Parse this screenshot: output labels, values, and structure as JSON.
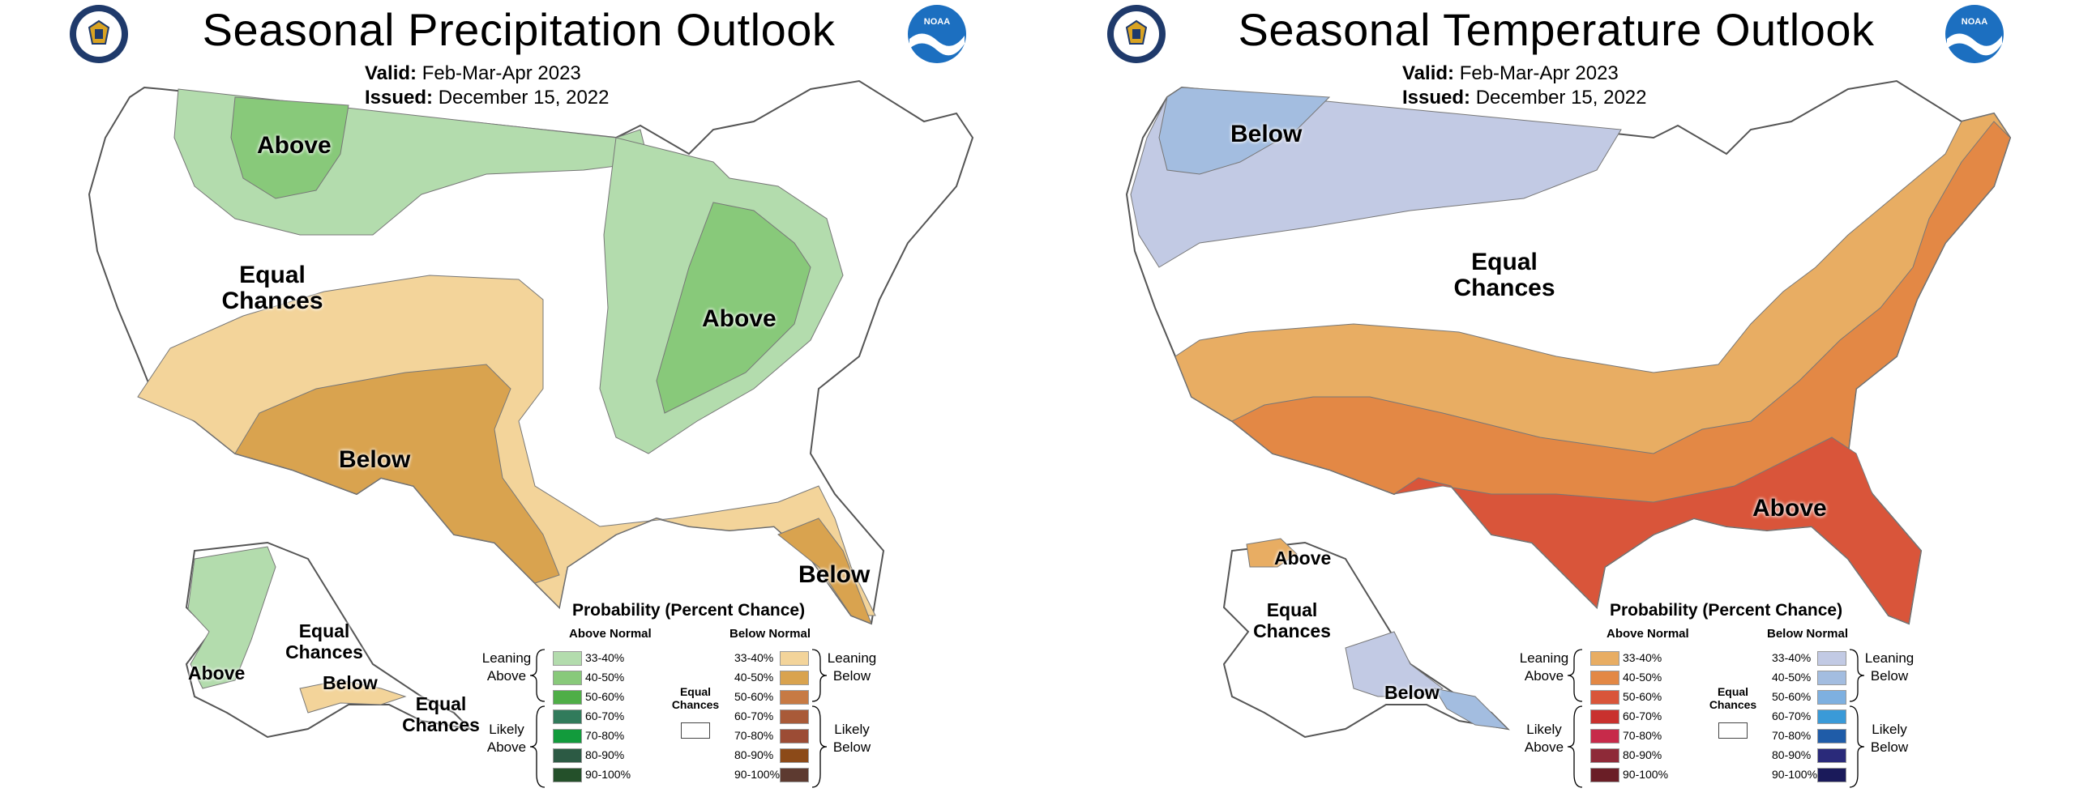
{
  "panels": [
    {
      "title": "Seasonal Precipitation Outlook",
      "valid_label": "Valid:",
      "valid_value": "Feb-Mar-Apr 2023",
      "issued_label": "Issued:",
      "issued_value": "December 15, 2022",
      "map_labels": {
        "above_north": "Above",
        "equal_west": "Equal Chances",
        "above_east": "Above",
        "below_sw": "Below",
        "below_fl": "Below",
        "ak_equal": "Equal Chances",
        "ak_above": "Above",
        "ak_below": "Below",
        "ak_equal2": "Equal Chances"
      },
      "legend": {
        "title": "Probability (Percent Chance)",
        "above_header": "Above Normal",
        "below_header": "Below Normal",
        "leaning_above": "Leaning Above",
        "likely_above": "Likely Above",
        "leaning_below": "Leaning Below",
        "likely_below": "Likely Below",
        "equal_chances": "Equal Chances",
        "percents": [
          "33-40%",
          "40-50%",
          "50-60%",
          "60-70%",
          "70-80%",
          "80-90%",
          "90-100%"
        ],
        "above_colors": [
          "#b3dcad",
          "#88c97a",
          "#4fae47",
          "#317b5b",
          "#129b3c",
          "#2c5a44",
          "#24502a"
        ],
        "below_colors": [
          "#f3d49a",
          "#d9a34f",
          "#c77a44",
          "#a95a38",
          "#9c4c35",
          "#8c4a18",
          "#5d3a30"
        ]
      }
    },
    {
      "title": "Seasonal Temperature Outlook",
      "valid_label": "Valid:",
      "valid_value": "Feb-Mar-Apr 2023",
      "issued_label": "Issued:",
      "issued_value": "December 15, 2022",
      "map_labels": {
        "below_nw": "Below",
        "equal_center": "Equal Chances",
        "above_se": "Above",
        "ak_above": "Above",
        "ak_equal": "Equal Chances",
        "ak_below": "Below"
      },
      "legend": {
        "title": "Probability (Percent Chance)",
        "above_header": "Above Normal",
        "below_header": "Below Normal",
        "leaning_above": "Leaning Above",
        "likely_above": "Likely Above",
        "leaning_below": "Leaning Below",
        "likely_below": "Likely Below",
        "equal_chances": "Equal Chances",
        "percents": [
          "33-40%",
          "40-50%",
          "50-60%",
          "60-70%",
          "70-80%",
          "80-90%",
          "90-100%"
        ],
        "above_colors": [
          "#e8ad63",
          "#e38845",
          "#d9553a",
          "#c9312e",
          "#c72a4a",
          "#8e2a38",
          "#6a1e26"
        ],
        "below_colors": [
          "#c2cae4",
          "#a3bde0",
          "#7eb0e0",
          "#3a9ad8",
          "#1f5ca8",
          "#2a2a7a",
          "#1a1a5a"
        ]
      }
    }
  ],
  "colors": {
    "precip_above_1": "#b3dcad",
    "precip_above_2": "#88c97a",
    "precip_below_1": "#f3d49a",
    "precip_below_2": "#d9a34f",
    "temp_above_1": "#e8ad63",
    "temp_above_2": "#e38845",
    "temp_above_3": "#d9553a",
    "temp_below_1": "#c2cae4",
    "temp_below_2": "#a3bde0",
    "noaa_blue": "#1c6fc0",
    "doc_navy": "#1f3a6b"
  }
}
